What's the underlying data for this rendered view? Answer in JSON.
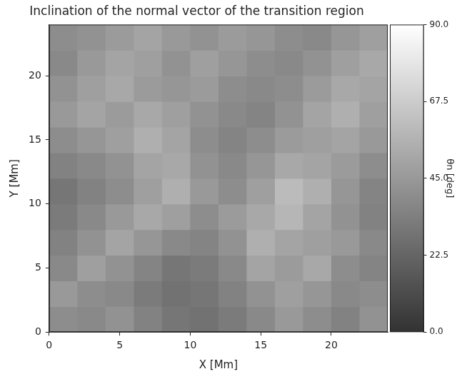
{
  "chart_data": {
    "type": "heatmap",
    "title": "Inclination of the normal vector of the transition region",
    "x_label": "X [Mm]",
    "y_label": "Y [Mm]",
    "x": [
      1,
      3,
      5,
      7,
      9,
      11,
      13,
      15,
      17,
      19,
      21,
      23
    ],
    "y": [
      1,
      3,
      5,
      7,
      9,
      11,
      13,
      15,
      17,
      19,
      21,
      23
    ],
    "values": [
      [
        40,
        38,
        42,
        35,
        30,
        28,
        32,
        38,
        45,
        40,
        35,
        42
      ],
      [
        45,
        40,
        38,
        32,
        28,
        30,
        35,
        42,
        48,
        44,
        38,
        40
      ],
      [
        38,
        48,
        42,
        36,
        30,
        32,
        38,
        50,
        46,
        52,
        40,
        36
      ],
      [
        35,
        42,
        50,
        44,
        38,
        36,
        42,
        55,
        50,
        48,
        45,
        38
      ],
      [
        32,
        38,
        45,
        52,
        48,
        40,
        46,
        52,
        58,
        50,
        42,
        35
      ],
      [
        30,
        35,
        40,
        48,
        55,
        45,
        40,
        48,
        60,
        55,
        44,
        36
      ],
      [
        35,
        38,
        42,
        50,
        52,
        42,
        38,
        44,
        52,
        50,
        46,
        40
      ],
      [
        40,
        44,
        48,
        55,
        50,
        40,
        36,
        40,
        46,
        48,
        50,
        45
      ],
      [
        45,
        50,
        46,
        52,
        48,
        42,
        38,
        36,
        42,
        50,
        55,
        48
      ],
      [
        42,
        48,
        52,
        46,
        44,
        46,
        40,
        38,
        40,
        46,
        52,
        50
      ],
      [
        38,
        45,
        50,
        48,
        42,
        48,
        44,
        40,
        38,
        42,
        48,
        52
      ],
      [
        40,
        42,
        46,
        50,
        45,
        42,
        46,
        44,
        40,
        38,
        44,
        48
      ]
    ],
    "xlim": [
      0,
      24
    ],
    "xticks": [
      0,
      5,
      10,
      15,
      20
    ],
    "ylim": [
      0,
      24
    ],
    "yticks": [
      0,
      5,
      10,
      15,
      20
    ],
    "grid": false,
    "colorbar_label": "θn [deg]",
    "colorbar_lim": [
      0,
      90
    ],
    "colorbar_ticks": [
      {
        "value": 0,
        "label": "0.0"
      },
      22.5,
      {
        "value": 45,
        "label": "45.0"
      },
      67.5,
      {
        "value": 90,
        "label": "90.0"
      }
    ]
  }
}
